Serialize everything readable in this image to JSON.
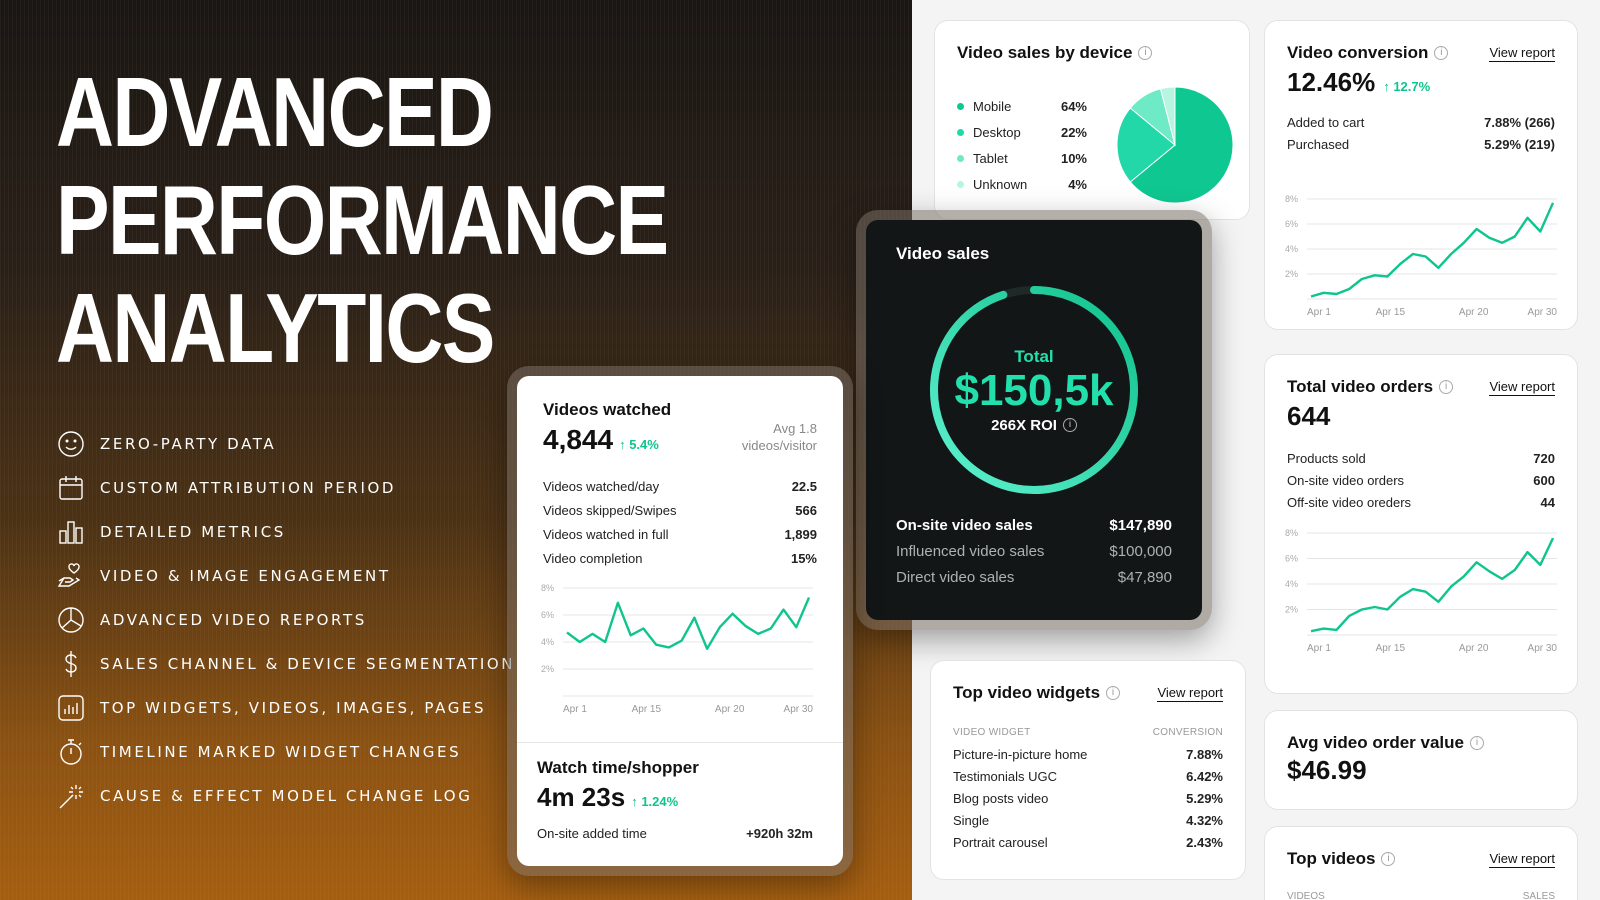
{
  "hero": {
    "title_lines": [
      "ADVANCED",
      "PERFORMANCE",
      "ANALYTICS"
    ],
    "features": [
      {
        "label": "ZERO-PARTY DATA",
        "icon": "smiley-icon"
      },
      {
        "label": "CUSTOM ATTRIBUTION PERIOD",
        "icon": "calendar-icon"
      },
      {
        "label": "DETAILED METRICS",
        "icon": "bar-chart-icon"
      },
      {
        "label": "VIDEO & IMAGE ENGAGEMENT",
        "icon": "hand-heart-icon"
      },
      {
        "label": "ADVANCED VIDEO REPORTS",
        "icon": "pie-chart-icon"
      },
      {
        "label": "SALES CHANNEL & DEVICE SEGMENTATION",
        "icon": "dollar-icon"
      },
      {
        "label": "TOP WIDGETS, VIDEOS, IMAGES, PAGES",
        "icon": "report-chart-icon"
      },
      {
        "label": "TIMELINE MARKED WIDGET CHANGES",
        "icon": "stopwatch-icon"
      },
      {
        "label": "CAUSE & EFFECT MODEL CHANGE LOG",
        "icon": "magic-wand-icon"
      }
    ]
  },
  "device_card": {
    "title": "Video sales by device",
    "items": [
      {
        "name": "Mobile",
        "pct": "64%",
        "value": 64,
        "color": "#0fc791"
      },
      {
        "name": "Desktop",
        "pct": "22%",
        "value": 22,
        "color": "#22d7a8"
      },
      {
        "name": "Tablet",
        "pct": "10%",
        "value": 10,
        "color": "#6eeac6"
      },
      {
        "name": "Unknown",
        "pct": "4%",
        "value": 4,
        "color": "#b7f5e0"
      }
    ]
  },
  "conversion_card": {
    "title": "Video conversion",
    "view_report": "View report",
    "value": "12.46%",
    "delta": "12.7%",
    "rows": [
      {
        "label": "Added to cart",
        "value": "7.88% (266)"
      },
      {
        "label": "Purchased",
        "value": "5.29% (219)"
      }
    ],
    "y_ticks": [
      "8%",
      "6%",
      "4%",
      "2%"
    ],
    "x_ticks": [
      "Apr 1",
      "Apr 15",
      "Apr 20",
      "Apr 30"
    ]
  },
  "orders_card": {
    "title": "Total video orders",
    "view_report": "View report",
    "value": "644",
    "rows": [
      {
        "label": "Products sold",
        "value": "720"
      },
      {
        "label": "On-site video orders",
        "value": "600"
      },
      {
        "label": "Off-site video oreders",
        "value": "44"
      }
    ],
    "y_ticks": [
      "8%",
      "6%",
      "4%",
      "2%"
    ],
    "x_ticks": [
      "Apr 1",
      "Apr 15",
      "Apr 20",
      "Apr 30"
    ]
  },
  "aov_card": {
    "title": "Avg video order value",
    "value": "$46.99"
  },
  "top_videos_card": {
    "title": "Top videos",
    "view_report": "View report",
    "col1": "VIDEOS",
    "col2": "SALES"
  },
  "sales_card": {
    "title": "Video sales",
    "total_label": "Total",
    "total_value": "$150,5k",
    "roi": "266X ROI",
    "ring_progress": 0.95,
    "rows": [
      {
        "label": "On-site video sales",
        "value": "$147,890"
      },
      {
        "label": "Influenced video sales",
        "value": "$100,000"
      },
      {
        "label": "Direct video sales",
        "value": "$47,890"
      }
    ]
  },
  "widgets_card": {
    "title": "Top video widgets",
    "view_report": "View report",
    "col1": "VIDEO WIDGET",
    "col2": "CONVERSION",
    "rows": [
      {
        "name": "Picture-in-picture home",
        "value": "7.88%"
      },
      {
        "name": "Testimonials UGC",
        "value": "6.42%"
      },
      {
        "name": "Blog posts video",
        "value": "5.29%"
      },
      {
        "name": "Single",
        "value": "4.32%"
      },
      {
        "name": "Portrait carousel",
        "value": "2.43%"
      }
    ]
  },
  "watched_card": {
    "title": "Videos watched",
    "value": "4,844",
    "delta": "5.4%",
    "avg": "Avg 1.8\nvideos/visitor",
    "rows": [
      {
        "label": "Videos watched/day",
        "value": "22.5"
      },
      {
        "label": "Videos skipped/Swipes",
        "value": "566"
      },
      {
        "label": "Videos watched in full",
        "value": "1,899"
      },
      {
        "label": "Video completion",
        "value": "15%"
      }
    ],
    "y_ticks": [
      "8%",
      "6%",
      "4%",
      "2%"
    ],
    "x_ticks": [
      "Apr 1",
      "Apr 15",
      "Apr 20",
      "Apr 30"
    ],
    "watch_title": "Watch time/shopper",
    "watch_value": "4m 23s",
    "watch_delta": "1.24%",
    "added_label": "On-site added time",
    "added_value": "+920h 32m"
  },
  "accent_color": "#10c48e",
  "chart_data": [
    {
      "type": "line",
      "name": "conversion",
      "ylim": [
        0,
        8
      ],
      "x": [
        0,
        1,
        2,
        3,
        4,
        5,
        6,
        7,
        8,
        9,
        10,
        11,
        12,
        13,
        14,
        15,
        16,
        17,
        18,
        19
      ],
      "values": [
        0.2,
        0.5,
        0.4,
        0.8,
        1.6,
        1.9,
        1.8,
        2.8,
        3.6,
        3.4,
        2.5,
        3.6,
        4.5,
        5.6,
        4.9,
        4.5,
        5.0,
        6.5,
        5.4,
        7.7
      ]
    },
    {
      "type": "line",
      "name": "orders",
      "ylim": [
        0,
        8
      ],
      "x": [
        0,
        1,
        2,
        3,
        4,
        5,
        6,
        7,
        8,
        9,
        10,
        11,
        12,
        13,
        14,
        15,
        16,
        17,
        18,
        19
      ],
      "values": [
        0.3,
        0.5,
        0.4,
        1.5,
        2.0,
        2.2,
        2.0,
        3.0,
        3.6,
        3.4,
        2.6,
        3.8,
        4.6,
        5.7,
        5.0,
        4.4,
        5.1,
        6.5,
        5.5,
        7.6
      ]
    },
    {
      "type": "line",
      "name": "watched",
      "ylim": [
        0,
        8
      ],
      "x": [
        0,
        1,
        2,
        3,
        4,
        5,
        6,
        7,
        8,
        9,
        10,
        11,
        12,
        13,
        14,
        15,
        16,
        17,
        18,
        19
      ],
      "values": [
        4.7,
        4.0,
        4.6,
        4.0,
        6.9,
        4.5,
        5.0,
        3.8,
        3.6,
        4.1,
        5.8,
        3.5,
        5.1,
        6.1,
        5.2,
        4.6,
        5.0,
        6.4,
        5.1,
        7.3
      ]
    }
  ]
}
